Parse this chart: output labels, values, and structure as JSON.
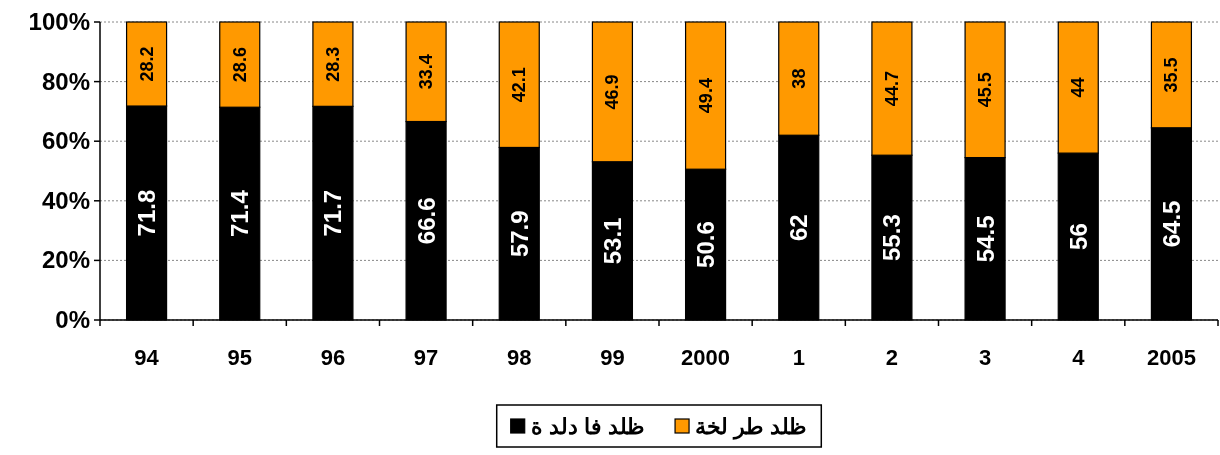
{
  "chart_data": {
    "type": "bar",
    "stacked": true,
    "categories": [
      "94",
      "95",
      "96",
      "97",
      "98",
      "99",
      "2000",
      "1",
      "2",
      "3",
      "4",
      "2005"
    ],
    "series": [
      {
        "name": "ظلد فا دلد ة",
        "color": "#000000",
        "values": [
          71.8,
          71.4,
          71.7,
          66.6,
          57.9,
          53.1,
          50.6,
          62,
          55.3,
          54.5,
          56,
          64.5
        ]
      },
      {
        "name": "ظلد طر لخة",
        "color": "#ff9900",
        "values": [
          28.2,
          28.6,
          28.3,
          33.4,
          42.1,
          46.9,
          49.4,
          38,
          44.7,
          45.5,
          44,
          35.5
        ]
      }
    ],
    "ylim": [
      0,
      100
    ],
    "yticks": [
      {
        "value": 0,
        "label": "0%"
      },
      {
        "value": 20,
        "label": "20%"
      },
      {
        "value": 40,
        "label": "40%"
      },
      {
        "value": 60,
        "label": "60%"
      },
      {
        "value": 80,
        "label": "80%"
      },
      {
        "value": 100,
        "label": "100%"
      }
    ],
    "grid": "y",
    "legend": "bottom",
    "data_labels": true
  }
}
